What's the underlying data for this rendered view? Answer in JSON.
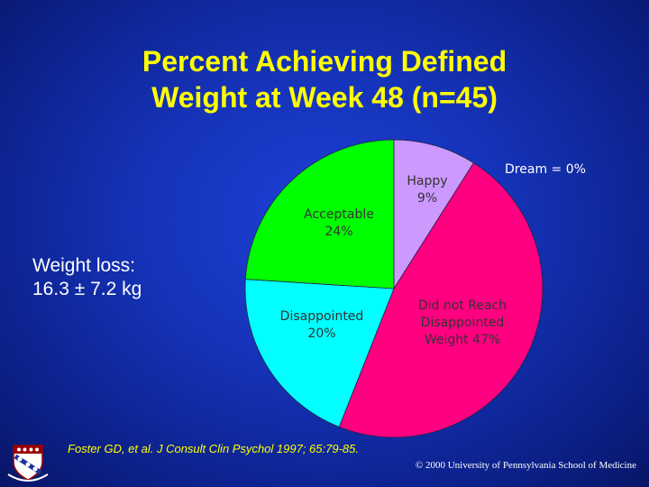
{
  "slide": {
    "title_line1": "Percent Achieving Defined",
    "title_line2": "Weight at Week 48 (n=45)",
    "note_line1": "Weight loss:",
    "note_line2": "16.3 ± 7.2 kg",
    "citation": "Foster GD, et al. J Consult Clin Psychol 1997; 65:79-85.",
    "copyright": "© 2000 University of Pennsylvania School of Medicine"
  },
  "chart_data": {
    "type": "pie",
    "title": "Percent Achieving Defined Weight at Week 48 (n=45)",
    "slices": [
      {
        "label_lines": [
          "Dream = 0%"
        ],
        "value": 0,
        "color": "#ffffff"
      },
      {
        "label_lines": [
          "Happy",
          "9%"
        ],
        "value": 9,
        "color": "#cc99ff"
      },
      {
        "label_lines": [
          "Did not Reach",
          "Disappointed",
          "Weight 47%"
        ],
        "value": 47,
        "color": "#ff0080"
      },
      {
        "label_lines": [
          "Disappointed",
          "20%"
        ],
        "value": 20,
        "color": "#00ffff"
      },
      {
        "label_lines": [
          "Acceptable",
          "24%"
        ],
        "value": 24,
        "color": "#00ff00"
      }
    ]
  },
  "seal": {
    "text": "UNIVERSITY OF PENNSYLVANIA"
  }
}
